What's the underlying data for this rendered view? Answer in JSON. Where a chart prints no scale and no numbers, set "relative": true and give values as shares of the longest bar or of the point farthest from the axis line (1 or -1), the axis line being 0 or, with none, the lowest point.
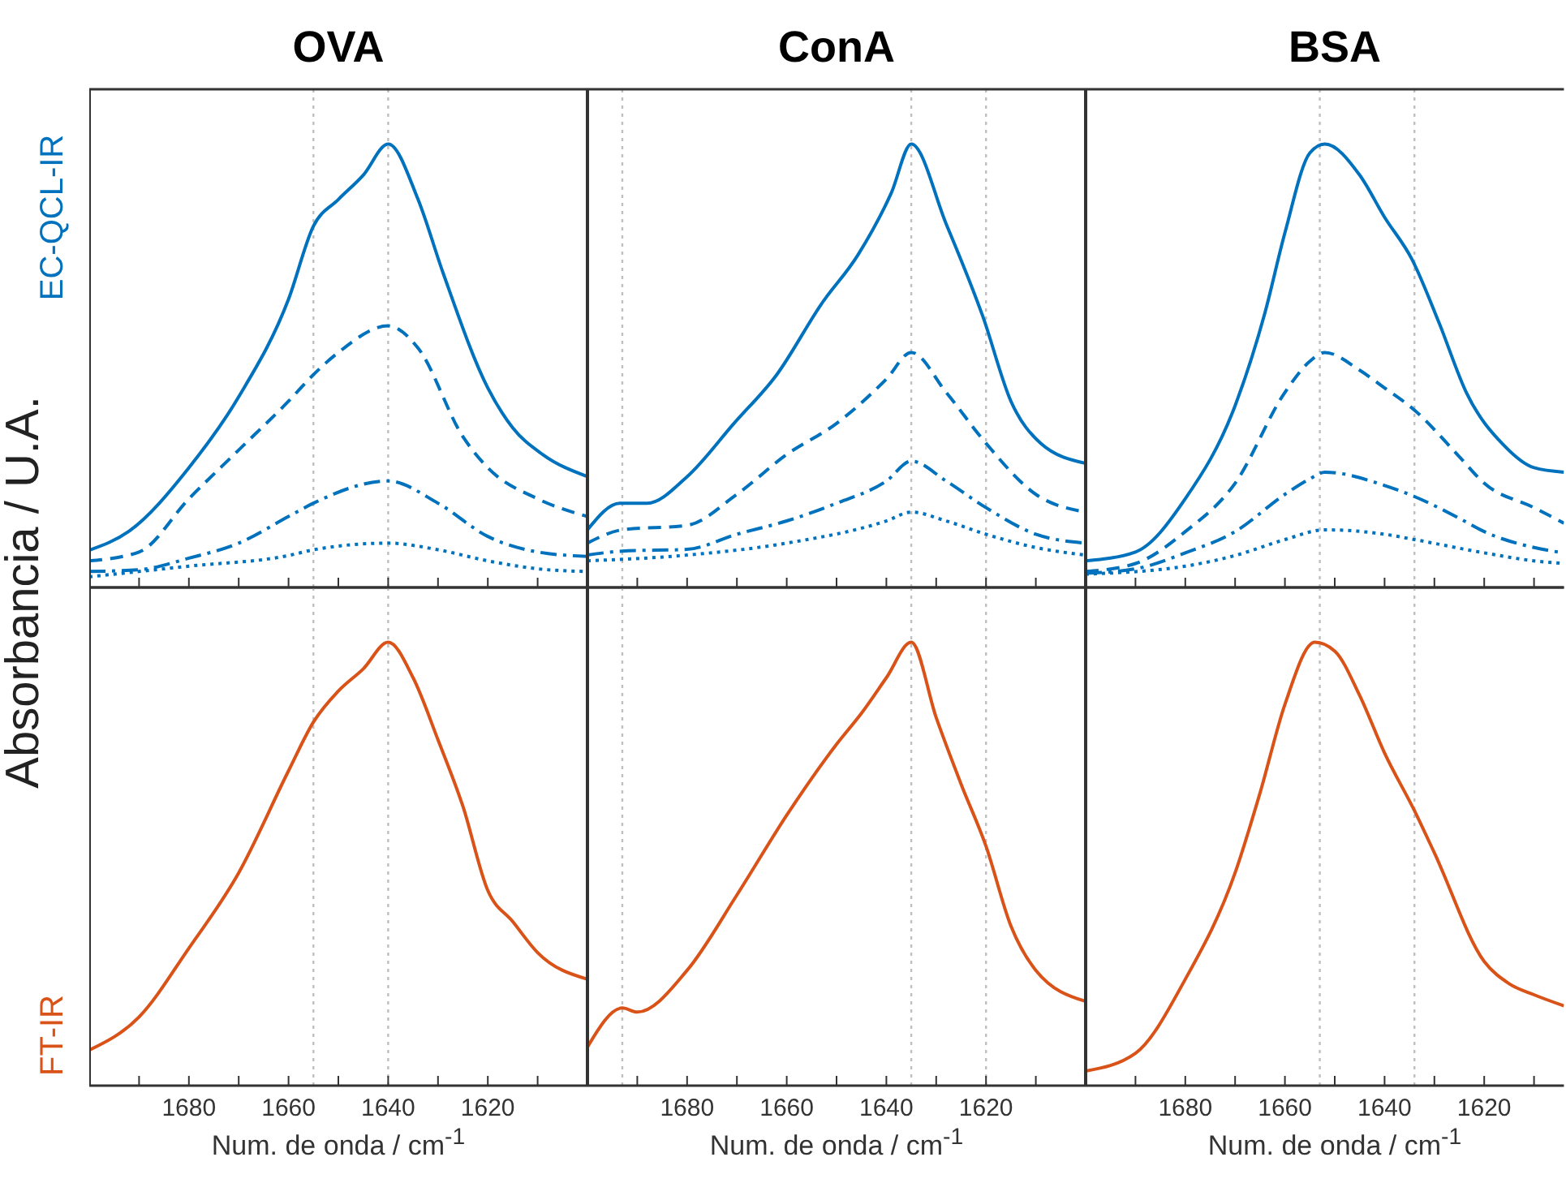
{
  "chart_data": [
    {
      "type": "line",
      "title": "OVA",
      "ylabel": "EC-QCL-IR",
      "annotations": [
        "Absorbancia / U.A."
      ],
      "relative": true,
      "xlim": [
        1700,
        1600
      ],
      "xticks": [
        {
          "value": 1690,
          "label": null
        },
        1680,
        {
          "value": 1670,
          "label": null
        },
        1660,
        {
          "value": 1650,
          "label": null
        },
        1640,
        {
          "value": 1630,
          "label": null
        },
        1620,
        {
          "value": 1610,
          "label": null
        }
      ],
      "tick_labels": false,
      "ref_lines": [
        {
          "axis": "x",
          "value": 1655,
          "color": "#bfbfbf",
          "line_style": "dotted"
        },
        {
          "axis": "x",
          "value": 1640,
          "color": "#bfbfbf",
          "line_style": "dotted"
        }
      ],
      "series": [
        {
          "color": "#0072bd",
          "line_style": "solid",
          "x": [
            1700,
            1692,
            1680,
            1670,
            1660,
            1655,
            1650,
            1645,
            1640,
            1634,
            1629,
            1620,
            1615,
            1609,
            1600
          ],
          "values": [
            0.084,
            0.127,
            0.27,
            0.43,
            0.65,
            0.815,
            0.875,
            0.93,
            1,
            0.875,
            0.71,
            0.45,
            0.36,
            0.3,
            0.25
          ]
        },
        {
          "color": "#0072bd",
          "line_style": "dashed",
          "x": [
            1700,
            1690,
            1680,
            1670,
            1660,
            1655,
            1650,
            1640,
            1634,
            1625,
            1620,
            1610,
            1600
          ],
          "values": [
            0.06,
            0.08,
            0.2,
            0.31,
            0.42,
            0.48,
            0.53,
            0.59,
            0.54,
            0.34,
            0.27,
            0.2,
            0.16
          ]
        },
        {
          "color": "#0072bd",
          "line_style": "dashdot",
          "x": [
            1700,
            1690,
            1680,
            1670,
            1660,
            1655,
            1640,
            1630,
            1620,
            1610,
            1600
          ],
          "values": [
            0.036,
            0.04,
            0.066,
            0.1,
            0.16,
            0.19,
            0.24,
            0.19,
            0.115,
            0.08,
            0.07
          ]
        },
        {
          "color": "#0072bd",
          "line_style": "dotted",
          "x": [
            1700,
            1680,
            1660,
            1655,
            1640,
            1630,
            1620,
            1610,
            1600
          ],
          "values": [
            0.024,
            0.048,
            0.072,
            0.085,
            0.1,
            0.085,
            0.06,
            0.042,
            0.036
          ]
        }
      ]
    },
    {
      "type": "line",
      "title": "ConA",
      "relative": true,
      "xlim": [
        1700,
        1600
      ],
      "xticks": [
        {
          "value": 1690,
          "label": null
        },
        1680,
        {
          "value": 1670,
          "label": null
        },
        1660,
        {
          "value": 1650,
          "label": null
        },
        1640,
        {
          "value": 1630,
          "label": null
        },
        1620,
        {
          "value": 1610,
          "label": null
        }
      ],
      "tick_labels": false,
      "ref_lines": [
        {
          "axis": "x",
          "value": 1693,
          "color": "#bfbfbf",
          "line_style": "dotted"
        },
        {
          "axis": "x",
          "value": 1635,
          "color": "#bfbfbf",
          "line_style": "dotted"
        },
        {
          "axis": "x",
          "value": 1620,
          "color": "#bfbfbf",
          "line_style": "dotted"
        }
      ],
      "series": [
        {
          "color": "#0072bd",
          "line_style": "solid",
          "x": [
            1700,
            1693.5,
            1688,
            1680,
            1670.6,
            1662,
            1653,
            1645.7,
            1639,
            1635,
            1628,
            1620.6,
            1615,
            1609,
            1600
          ],
          "values": [
            0.13,
            0.19,
            0.19,
            0.25,
            0.37,
            0.48,
            0.64,
            0.75,
            0.89,
            1,
            0.82,
            0.61,
            0.42,
            0.325,
            0.28
          ]
        },
        {
          "color": "#0072bd",
          "line_style": "dashed",
          "x": [
            1700,
            1693,
            1680,
            1670,
            1660,
            1650,
            1640,
            1635,
            1628,
            1620,
            1610,
            1600
          ],
          "values": [
            0.1,
            0.13,
            0.14,
            0.21,
            0.3,
            0.37,
            0.47,
            0.53,
            0.44,
            0.325,
            0.21,
            0.17
          ]
        },
        {
          "color": "#0072bd",
          "line_style": "dashdot",
          "x": [
            1700,
            1693,
            1680,
            1670,
            1660,
            1650,
            1640,
            1635,
            1628,
            1620,
            1610,
            1600
          ],
          "values": [
            0.073,
            0.082,
            0.086,
            0.12,
            0.15,
            0.19,
            0.24,
            0.285,
            0.24,
            0.18,
            0.12,
            0.1
          ]
        },
        {
          "color": "#0072bd",
          "line_style": "dotted",
          "x": [
            1700,
            1680,
            1660,
            1640,
            1635,
            1628,
            1620,
            1610,
            1600
          ],
          "values": [
            0.06,
            0.073,
            0.1,
            0.15,
            0.17,
            0.15,
            0.12,
            0.09,
            0.073
          ]
        }
      ]
    },
    {
      "type": "line",
      "title": "BSA",
      "relative": true,
      "xlim": [
        1700,
        1604
      ],
      "xticks": [
        {
          "value": 1690,
          "label": null
        },
        1680,
        {
          "value": 1670,
          "label": null
        },
        1660,
        {
          "value": 1650,
          "label": null
        },
        1640,
        {
          "value": 1630,
          "label": null
        },
        1620,
        {
          "value": 1610,
          "label": null
        }
      ],
      "tick_labels": false,
      "ref_lines": [
        {
          "axis": "x",
          "value": 1653,
          "color": "#bfbfbf",
          "line_style": "dotted"
        },
        {
          "axis": "x",
          "value": 1634,
          "color": "#bfbfbf",
          "line_style": "dotted"
        }
      ],
      "series": [
        {
          "color": "#0072bd",
          "line_style": "solid",
          "x": [
            1700,
            1690,
            1680,
            1670,
            1664,
            1660,
            1655,
            1652,
            1645,
            1640,
            1634.5,
            1629,
            1623.6,
            1616,
            1610,
            1604
          ],
          "values": [
            0.06,
            0.08,
            0.2,
            0.41,
            0.62,
            0.8,
            0.98,
            1,
            0.93,
            0.835,
            0.74,
            0.595,
            0.44,
            0.32,
            0.27,
            0.26
          ]
        },
        {
          "color": "#0072bd",
          "line_style": "dashed",
          "x": [
            1700,
            1690,
            1680,
            1670,
            1660,
            1655,
            1652,
            1645,
            1640,
            1634,
            1625,
            1620,
            1610,
            1604
          ],
          "values": [
            0.036,
            0.054,
            0.126,
            0.235,
            0.44,
            0.51,
            0.53,
            0.49,
            0.45,
            0.4,
            0.295,
            0.235,
            0.18,
            0.145
          ]
        },
        {
          "color": "#0072bd",
          "line_style": "dashdot",
          "x": [
            1700,
            1690,
            1680,
            1670,
            1660,
            1655,
            1652,
            1640,
            1634,
            1625,
            1620,
            1610,
            1604
          ],
          "values": [
            0.032,
            0.042,
            0.078,
            0.126,
            0.21,
            0.245,
            0.26,
            0.23,
            0.205,
            0.156,
            0.126,
            0.09,
            0.078
          ]
        },
        {
          "color": "#0072bd",
          "line_style": "dotted",
          "x": [
            1700,
            1680,
            1670,
            1660,
            1652,
            1640,
            1634,
            1620,
            1610,
            1604
          ],
          "values": [
            0.03,
            0.048,
            0.072,
            0.108,
            0.13,
            0.12,
            0.108,
            0.078,
            0.06,
            0.054
          ]
        }
      ]
    },
    {
      "type": "line",
      "ylabel": "FT-IR",
      "xlabel": "Num. de onda / cm$^{-1}$",
      "relative": true,
      "xlim": [
        1700,
        1600
      ],
      "xticks": [
        {
          "value": 1690,
          "label": null
        },
        1680,
        {
          "value": 1670,
          "label": null
        },
        1660,
        {
          "value": 1650,
          "label": null
        },
        1640,
        {
          "value": 1630,
          "label": null
        },
        1620,
        {
          "value": 1610,
          "label": null
        }
      ],
      "tick_labels": "x",
      "ref_lines": [
        {
          "axis": "x",
          "value": 1655,
          "color": "#bfbfbf",
          "line_style": "dotted"
        },
        {
          "axis": "x",
          "value": 1640,
          "color": "#bfbfbf",
          "line_style": "dotted"
        }
      ],
      "series": [
        {
          "color": "#d95319",
          "line_style": "solid",
          "x": [
            1700,
            1690,
            1680,
            1670,
            1660,
            1655,
            1650,
            1645,
            1640,
            1635,
            1630,
            1625,
            1620,
            1615,
            1610,
            1600
          ],
          "values": [
            0.08,
            0.155,
            0.31,
            0.48,
            0.71,
            0.82,
            0.89,
            0.94,
            1,
            0.92,
            0.78,
            0.63,
            0.44,
            0.37,
            0.3,
            0.24
          ]
        }
      ]
    },
    {
      "type": "line",
      "xlabel": "Num. de onda / cm$^{-1}$",
      "relative": true,
      "xlim": [
        1700,
        1600
      ],
      "xticks": [
        {
          "value": 1690,
          "label": null
        },
        1680,
        {
          "value": 1670,
          "label": null
        },
        1660,
        {
          "value": 1650,
          "label": null
        },
        1640,
        {
          "value": 1630,
          "label": null
        },
        1620,
        {
          "value": 1610,
          "label": null
        }
      ],
      "tick_labels": "x",
      "ref_lines": [
        {
          "axis": "x",
          "value": 1693,
          "color": "#bfbfbf",
          "line_style": "dotted"
        },
        {
          "axis": "x",
          "value": 1635,
          "color": "#bfbfbf",
          "line_style": "dotted"
        },
        {
          "axis": "x",
          "value": 1620,
          "color": "#bfbfbf",
          "line_style": "dotted"
        }
      ],
      "series": [
        {
          "color": "#d95319",
          "line_style": "solid",
          "x": [
            1700,
            1693,
            1690,
            1680,
            1670,
            1660,
            1650,
            1645,
            1640,
            1635,
            1630,
            1625,
            1620,
            1615,
            1610,
            1600
          ],
          "values": [
            0.087,
            0.175,
            0.166,
            0.26,
            0.43,
            0.61,
            0.77,
            0.84,
            0.92,
            1,
            0.83,
            0.68,
            0.54,
            0.36,
            0.26,
            0.19
          ]
        }
      ]
    },
    {
      "type": "line",
      "xlabel": "Num. de onda / cm$^{-1}$",
      "relative": true,
      "xlim": [
        1700,
        1604
      ],
      "xticks": [
        {
          "value": 1690,
          "label": null
        },
        1680,
        {
          "value": 1670,
          "label": null
        },
        1660,
        {
          "value": 1650,
          "label": null
        },
        1640,
        {
          "value": 1630,
          "label": null
        },
        1620,
        {
          "value": 1610,
          "label": null
        }
      ],
      "tick_labels": "x",
      "ref_lines": [
        {
          "axis": "x",
          "value": 1653,
          "color": "#bfbfbf",
          "line_style": "dotted"
        },
        {
          "axis": "x",
          "value": 1634,
          "color": "#bfbfbf",
          "line_style": "dotted"
        }
      ],
      "series": [
        {
          "color": "#d95319",
          "line_style": "solid",
          "x": [
            1700,
            1690,
            1680,
            1670,
            1665,
            1660,
            1654,
            1650,
            1645,
            1640,
            1634,
            1630,
            1620,
            1615,
            1610,
            1604
          ],
          "values": [
            0.033,
            0.073,
            0.24,
            0.48,
            0.66,
            0.86,
            1,
            0.98,
            0.88,
            0.75,
            0.62,
            0.525,
            0.28,
            0.23,
            0.205,
            0.18
          ]
        }
      ]
    }
  ]
}
